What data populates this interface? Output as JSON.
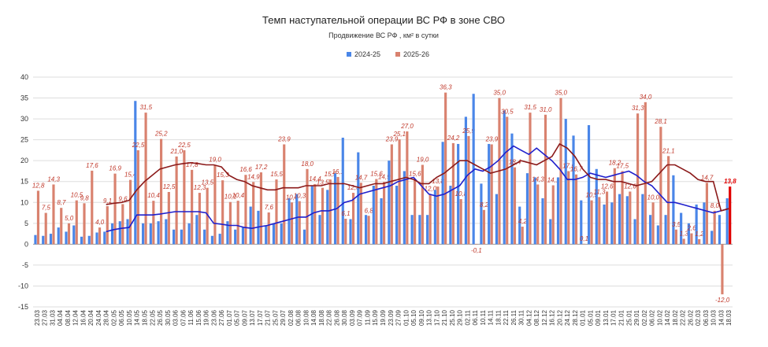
{
  "chart_data": {
    "type": "bar",
    "title": "Темп наступательной операции ВС РФ в зоне СВО",
    "subtitle": "Продвижение ВС РФ , км² в сутки",
    "categories": [
      "23.03",
      "27.03",
      "31.03",
      "04.04",
      "08.04",
      "12.04",
      "16.04",
      "20.04",
      "24.04",
      "28.04",
      "02.05",
      "06.05",
      "10.05",
      "14.05",
      "18.05",
      "22.05",
      "26.05",
      "30.05",
      "03.06",
      "07.06",
      "11.06",
      "15.06",
      "19.06",
      "23.06",
      "27.06",
      "01.07",
      "05.07",
      "09.07",
      "13.07",
      "17.07",
      "21.07",
      "25.07",
      "29.07",
      "02.08",
      "06.08",
      "10.08",
      "14.08",
      "18.08",
      "22.08",
      "26.08",
      "30.08",
      "03.09",
      "07.09",
      "11.09",
      "15.09",
      "19.09",
      "23.09",
      "27.09",
      "01.10",
      "05.10",
      "09.10",
      "13.10",
      "17.10",
      "21.10",
      "25.10",
      "29.10",
      "02.11",
      "06.11",
      "10.11",
      "14.11",
      "18.11",
      "22.11",
      "26.11",
      "30.11",
      "04.12",
      "08.12",
      "12.12",
      "16.12",
      "20.12",
      "24.12",
      "28.12",
      "01.01",
      "05.01",
      "09.01",
      "13.01",
      "17.01",
      "21.01",
      "25.01",
      "29.01",
      "02.02",
      "06.02",
      "10.02",
      "14.02",
      "18.02",
      "22.02",
      "26.02",
      "02.03",
      "06.03",
      "10.03",
      "14.03",
      "18.03"
    ],
    "series": [
      {
        "name": "2024-25",
        "color": "#4a86e8",
        "values": [
          2.2,
          2,
          2.5,
          4,
          3,
          4.5,
          1.8,
          2,
          2.8,
          3,
          5,
          5.5,
          6,
          34.3,
          5,
          5,
          5.5,
          6,
          3.5,
          3.5,
          5,
          7,
          3.5,
          2,
          2.5,
          5.5,
          3.5,
          4,
          9,
          8,
          4.5,
          5,
          5,
          11,
          12,
          3.5,
          14,
          7,
          13,
          17,
          25.5,
          6,
          22,
          7,
          14,
          11,
          20,
          14,
          17.5,
          7,
          7,
          7,
          13,
          24.5,
          14,
          24,
          30.5,
          36,
          14.5,
          24,
          12,
          32,
          26.5,
          9,
          17,
          16,
          11,
          6,
          16,
          30,
          26,
          10.5,
          28.5,
          18,
          9.5,
          10,
          12,
          11.5,
          6,
          12,
          7,
          4.5,
          7,
          16.5,
          7.5,
          5,
          9.5,
          10,
          3.2,
          7,
          11
        ]
      },
      {
        "name": "2025-26",
        "color": "#d9826f",
        "values": [
          12.8,
          7.5,
          14.3,
          8.7,
          5,
          10.5,
          9.8,
          17.6,
          4,
          9.1,
          16.9,
          9.6,
          15.4,
          22.5,
          31.5,
          10.4,
          25.2,
          12.5,
          21.0,
          22.5,
          17.8,
          12.3,
          13.5,
          19.0,
          15.3,
          10.1,
          10.4,
          16.6,
          14.9,
          17.2,
          7.6,
          15.5,
          23.9,
          10.0,
          10.3,
          18.0,
          14.4,
          13.5,
          15.5,
          16.1,
          6.1,
          12.3,
          14.7,
          6.8,
          15.6,
          14.9,
          23.9,
          25.1,
          27.0,
          15.6,
          19.0,
          12.0,
          13.8,
          36.3,
          24.2,
          10.8,
          25.9,
          -0.1,
          8.2,
          23.9,
          35.0,
          30.5,
          18.4,
          4.2,
          31.5,
          14.3,
          31.0,
          14.1,
          35.0,
          17.5,
          16.7,
          0.1,
          10.5,
          11.3,
          12.6,
          18.2,
          17.5,
          12.6,
          31.3,
          34.0,
          10.0,
          28.1,
          21.1,
          3.5,
          1.3,
          2.6,
          1.2,
          14.7,
          8.0,
          -12.0,
          13.8
        ],
        "value_labels": [
          "12,8",
          "7,5",
          "14,3",
          "8,7",
          "5,0",
          "10,5",
          "9,8",
          "17,6",
          "4,0",
          "9,1",
          "16,9",
          "9,6",
          "15,4",
          "22,5",
          "31,5",
          "10,4",
          "25,2",
          "12,5",
          "21,0",
          "22,5",
          "17,8",
          "12,3",
          "13,5",
          "19,0",
          "15,3",
          "10,1",
          "10,4",
          "16,6",
          "14,9",
          "17,2",
          "7,6",
          "15,5",
          "23,9",
          "10,0",
          "10,3",
          "18,0",
          "14,4",
          "13,5",
          "15,5",
          "16,1",
          "6,1",
          "12,3",
          "14,7",
          "6,8",
          "15,6",
          "14,9",
          "23,9",
          "25,1",
          "27,0",
          "15,6",
          "19,0",
          "12,0",
          "13,8",
          "36,3",
          "24,2",
          "10,8",
          "25,9",
          "-0,1",
          "8,2",
          "23,9",
          "35,0",
          "30,5",
          "18,4",
          "4,2",
          "31,5",
          "14,3",
          "31,0",
          "14,1",
          "35,0",
          "17,5",
          "16,7",
          "0,1",
          "10,5",
          "11,3",
          "12,6",
          "18,2",
          "17,5",
          "12,6",
          "31,3",
          "34,0",
          "10,0",
          "28,1",
          "21,1",
          "3,5",
          "1,3",
          "2,6",
          "1,2",
          "14,7",
          "8,0",
          "-12,0",
          "13,8"
        ]
      }
    ],
    "lines": [
      {
        "color": "#1f1fcc",
        "values": [
          null,
          null,
          null,
          null,
          null,
          null,
          null,
          null,
          null,
          3,
          3.5,
          3.8,
          4,
          7,
          7,
          7,
          7.2,
          7.5,
          7.8,
          7.8,
          7.8,
          7.8,
          7.5,
          5,
          4.8,
          4.5,
          4.5,
          4,
          3.8,
          4.2,
          4.5,
          5,
          5.5,
          6,
          6.5,
          6.5,
          7.5,
          8,
          8,
          8.5,
          10,
          10.5,
          12,
          12.5,
          13,
          13.5,
          14,
          15,
          15.5,
          16,
          14,
          12,
          11.5,
          12,
          13,
          14,
          16.5,
          18,
          17.5,
          18.5,
          20,
          22,
          23.5,
          22.5,
          21.5,
          23,
          21.5,
          20,
          18,
          15.5,
          15.5,
          16,
          17,
          16.5,
          16,
          16.5,
          17,
          17.5,
          16.5,
          15,
          14,
          12,
          10,
          10,
          9.5,
          9,
          8.5,
          8,
          7.5,
          8,
          8.5
        ]
      },
      {
        "color": "#8b1a1a",
        "values": [
          null,
          null,
          null,
          null,
          null,
          null,
          null,
          null,
          null,
          9.5,
          9.8,
          10,
          10.5,
          13,
          15,
          16.5,
          18,
          18.5,
          19,
          19.3,
          19.5,
          19.3,
          19,
          19,
          18.5,
          16.5,
          15.5,
          15,
          14,
          13.5,
          13,
          13,
          13.5,
          13.5,
          13.5,
          14,
          14,
          14,
          14.5,
          14.5,
          14.5,
          14,
          13.5,
          14,
          14.5,
          14.5,
          15,
          15.5,
          16,
          15.5,
          14.5,
          14.5,
          16,
          17,
          18.5,
          20,
          20,
          19,
          18,
          17,
          17.5,
          18,
          19,
          20,
          19.5,
          19,
          20,
          21,
          24,
          23,
          21,
          18,
          16,
          15.5,
          15.5,
          15,
          15,
          14.5,
          14,
          14.5,
          15,
          17,
          19,
          19,
          18,
          17,
          15.5,
          15,
          15,
          8,
          8.5
        ]
      }
    ],
    "highlight_last_color": "#e00000",
    "ylim": [
      -15,
      40
    ],
    "yticks": [
      -15,
      -10,
      -5,
      0,
      5,
      10,
      15,
      20,
      25,
      30,
      35,
      40
    ],
    "grid": true,
    "legend": "top"
  }
}
